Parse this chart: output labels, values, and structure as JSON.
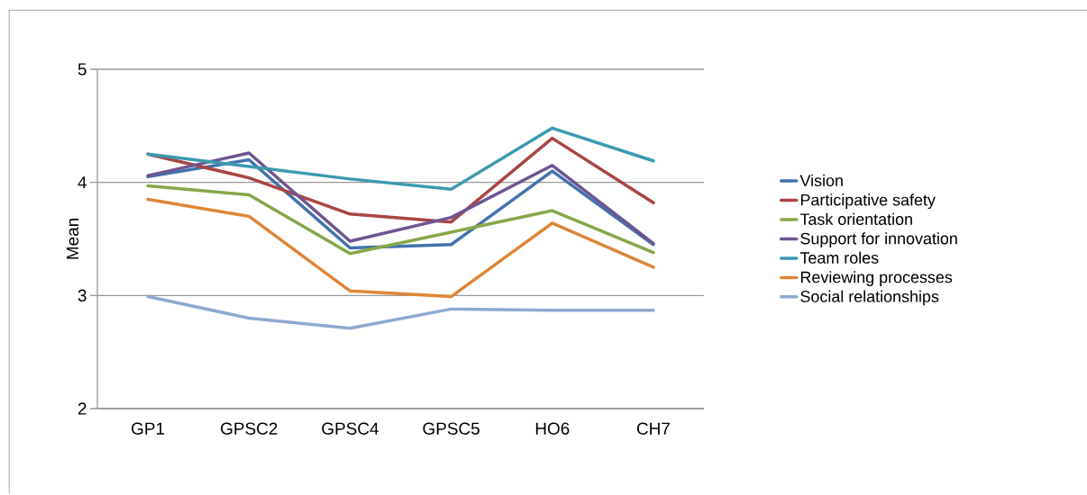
{
  "chart_data": {
    "type": "line",
    "ylabel": "Mean",
    "categories": [
      "GP1",
      "GPSC2",
      "GPSC4",
      "GPSC5",
      "HO6",
      "CH7"
    ],
    "ylim": [
      2,
      5
    ],
    "yticks": [
      2,
      3,
      4,
      5
    ],
    "grid": "y",
    "legend": "right",
    "line_style": "solid",
    "series": [
      {
        "name": "Vision",
        "color": "#4372ad",
        "values": [
          4.05,
          4.2,
          3.42,
          3.45,
          4.1,
          3.45
        ]
      },
      {
        "name": "Participative safety",
        "color": "#a84543",
        "values": [
          4.25,
          4.04,
          3.72,
          3.65,
          4.39,
          3.82
        ]
      },
      {
        "name": "Task orientation",
        "color": "#87a84a",
        "values": [
          3.97,
          3.89,
          3.37,
          3.56,
          3.75,
          3.38
        ]
      },
      {
        "name": "Support for innovation",
        "color": "#6e5592",
        "values": [
          4.06,
          4.26,
          3.48,
          3.69,
          4.15,
          3.46
        ]
      },
      {
        "name": "Team roles",
        "color": "#3d9ab0",
        "values": [
          4.25,
          4.14,
          4.03,
          3.94,
          4.48,
          4.19
        ]
      },
      {
        "name": "Reviewing processes",
        "color": "#df8538",
        "values": [
          3.85,
          3.7,
          3.04,
          2.99,
          3.64,
          3.25
        ]
      },
      {
        "name": "Social relationships",
        "color": "#8fa9d0",
        "values": [
          2.99,
          2.8,
          2.71,
          2.88,
          2.87,
          2.87
        ]
      }
    ]
  }
}
